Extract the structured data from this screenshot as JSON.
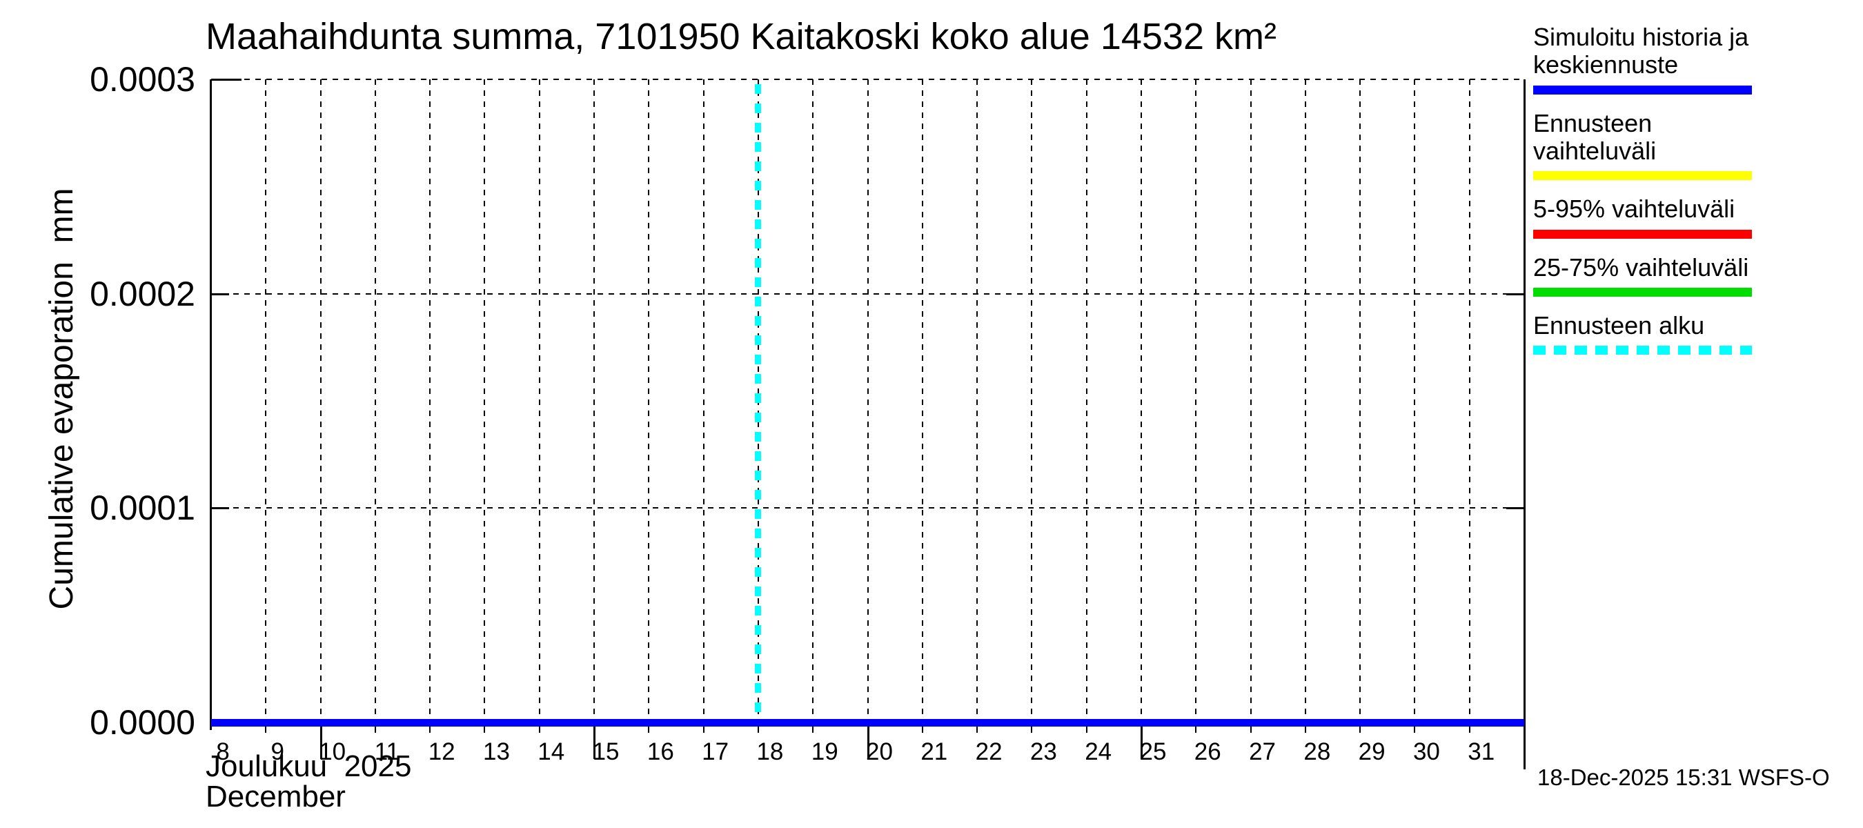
{
  "title": "Maahaihdunta summa, 7101950 Kaitakoski koko alue 14532 km²",
  "y_axis": {
    "label": "Cumulative evaporation  mm",
    "tick_labels": [
      "0.0003",
      "0.0002",
      "0.0001",
      "0.0000"
    ]
  },
  "x_axis": {
    "tick_labels": [
      "8",
      "9",
      "10",
      "11",
      "12",
      "13",
      "14",
      "15",
      "16",
      "17",
      "18",
      "19",
      "20",
      "21",
      "22",
      "23",
      "24",
      "25",
      "26",
      "27",
      "28",
      "29",
      "30",
      "31"
    ],
    "month_label_fi": "Joulukuu  2025",
    "month_label_en": "December"
  },
  "legend": [
    {
      "label": "Simuloitu historia ja keskiennuste",
      "color": "#0000ff",
      "style": "solid"
    },
    {
      "label": "Ennusteen vaihteluväli",
      "color": "#ffff00",
      "style": "solid"
    },
    {
      "label": "5-95% vaihteluväli",
      "color": "#ff0000",
      "style": "solid"
    },
    {
      "label": "25-75% vaihteluväli",
      "color": "#00dd00",
      "style": "solid"
    },
    {
      "label": "Ennusteen alku",
      "color": "#00ffff",
      "style": "dashed"
    }
  ],
  "footer": {
    "timestamp": "18-Dec-2025 15:31 WSFS-O"
  },
  "chart_data": {
    "type": "line",
    "title": "Maahaihdunta summa, 7101950 Kaitakoski koko alue 14532 km²",
    "station_id": "7101950",
    "station_name": "Kaitakoski koko alue",
    "area_km2": 14532,
    "xlabel": "Joulukuu 2025 / December",
    "ylabel": "Cumulative evaporation (mm)",
    "x": [
      8,
      9,
      10,
      11,
      12,
      13,
      14,
      15,
      16,
      17,
      18,
      19,
      20,
      21,
      22,
      23,
      24,
      25,
      26,
      27,
      28,
      29,
      30,
      31
    ],
    "series": [
      {
        "name": "Simuloitu historia ja keskiennuste",
        "color": "#0000ff",
        "values": [
          0.0,
          0.0,
          0.0,
          0.0,
          0.0,
          0.0,
          0.0,
          0.0,
          0.0,
          0.0,
          0.0,
          0.0,
          0.0,
          0.0,
          0.0,
          0.0,
          0.0,
          0.0,
          0.0,
          0.0,
          0.0,
          0.0,
          0.0,
          0.0
        ]
      }
    ],
    "forecast_start_x": 18,
    "forecast_marker_color": "#00ffff",
    "ylim": [
      0.0,
      0.0003
    ],
    "yticks": [
      0.0,
      0.0001,
      0.0002,
      0.0003
    ],
    "xlim": [
      8,
      32
    ],
    "grid": true,
    "grid_style": "dashed",
    "legend_position": "right-outside",
    "long_tick_days": [
      10,
      15,
      20,
      25
    ]
  }
}
